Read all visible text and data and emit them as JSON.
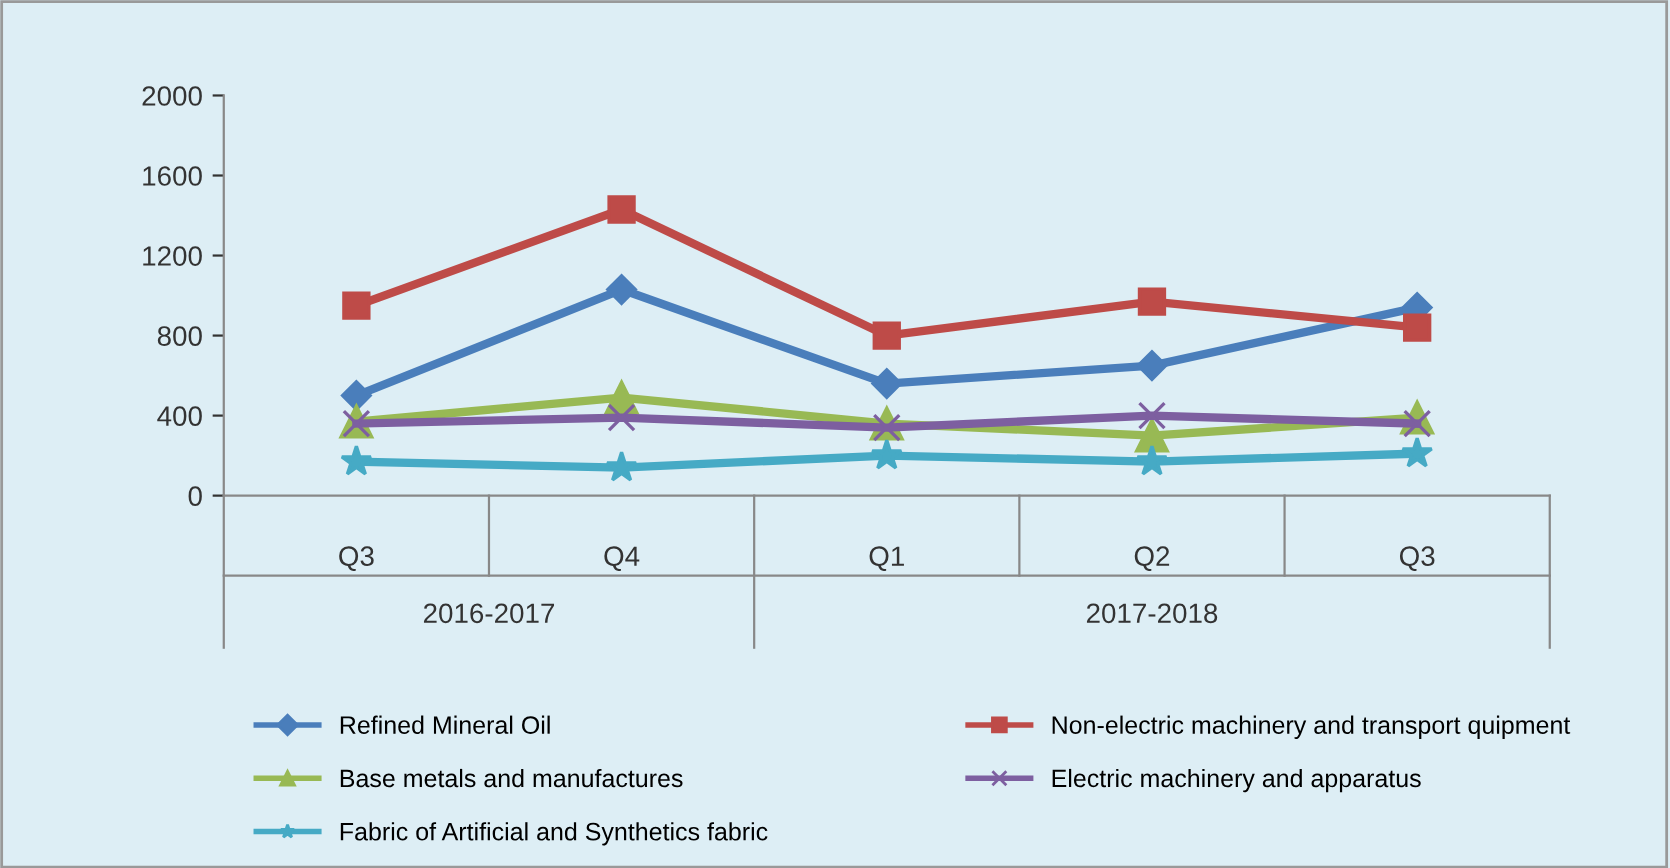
{
  "chart_data": {
    "type": "line",
    "categories": [
      "Q3",
      "Q4",
      "Q1",
      "Q2",
      "Q3"
    ],
    "annotations": [
      "2016-2017",
      "2017-2018"
    ],
    "series": [
      {
        "name": "Refined Mineral Oil",
        "color": "#4a7ebb",
        "marker": "diamond",
        "values": [
          500,
          1030,
          560,
          650,
          940
        ]
      },
      {
        "name": "Non-electric machinery and transport quipment",
        "color": "#be4b48",
        "marker": "square",
        "values": [
          950,
          1430,
          800,
          970,
          840
        ]
      },
      {
        "name": "Base metals and manufactures",
        "color": "#98b954",
        "marker": "triangle",
        "values": [
          370,
          490,
          360,
          300,
          390
        ]
      },
      {
        "name": "Electric machinery and apparatus",
        "color": "#7d5fa0",
        "marker": "cross",
        "values": [
          360,
          390,
          340,
          400,
          360
        ]
      },
      {
        "name": "Fabric of Artificial and Synthetics fabric",
        "color": "#46aac5",
        "marker": "star",
        "values": [
          170,
          140,
          200,
          170,
          210
        ]
      }
    ],
    "ylim": [
      0,
      2000
    ],
    "yticks": [
      0,
      400,
      800,
      1200,
      1600,
      2000
    ],
    "grid": false,
    "legend": "bottom"
  }
}
